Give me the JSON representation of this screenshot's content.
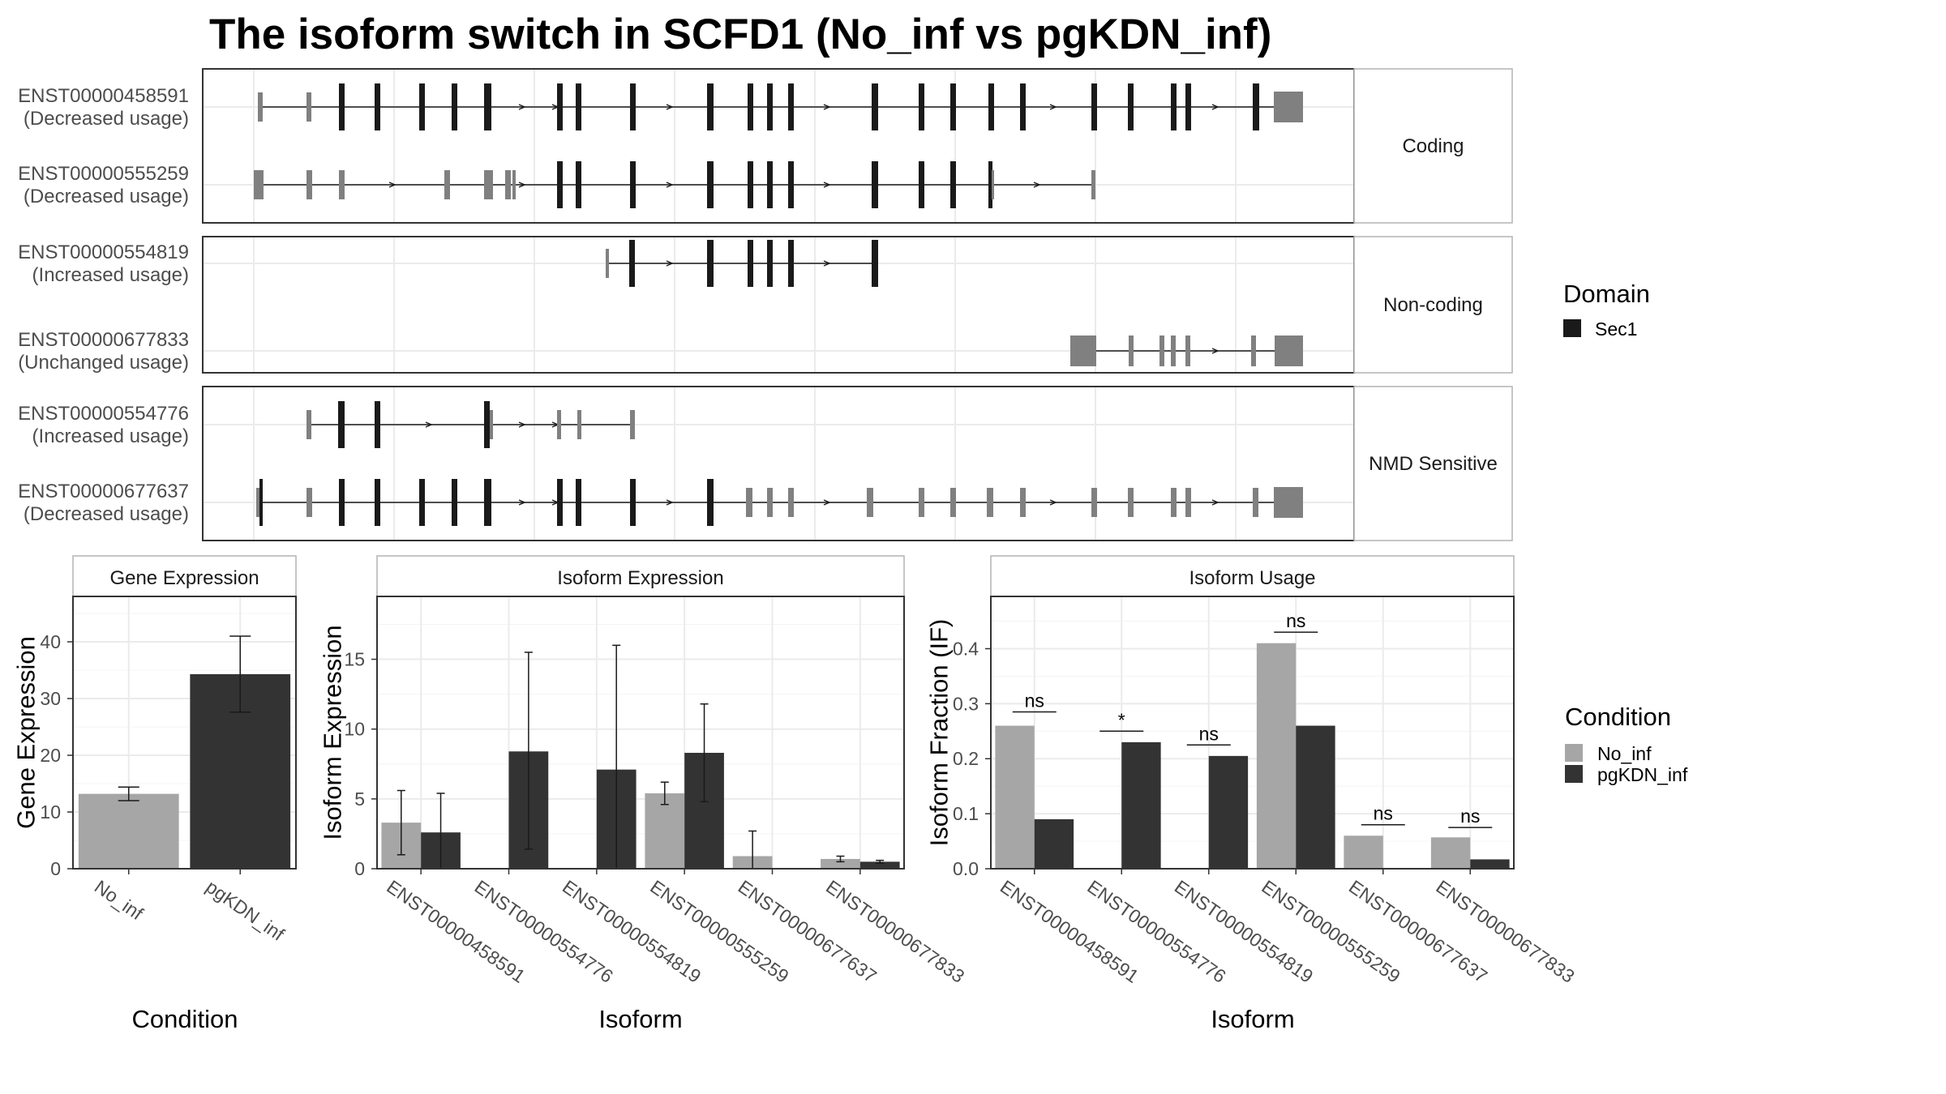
{
  "title": "The isoform switch in SCFD1 (No_inf vs pgKDN_inf)",
  "colors": {
    "domain_sec1": "#1a1a1a",
    "exon": "#808080",
    "no_inf": "#a6a6a6",
    "pgkdn_inf": "#333333",
    "grid": "#ebebeb",
    "panel_border": "#333333",
    "strip_border": "#b3b3b3"
  },
  "structure": {
    "facets": [
      {
        "label": "Coding",
        "transcripts": [
          {
            "id": "ENST00000458591",
            "status": "(Decreased usage)"
          },
          {
            "id": "ENST00000555259",
            "status": "(Decreased usage)"
          }
        ]
      },
      {
        "label": "Non-coding",
        "transcripts": [
          {
            "id": "ENST00000554819",
            "status": "(Increased usage)"
          },
          {
            "id": "ENST00000677833",
            "status": "(Unchanged usage)"
          }
        ]
      },
      {
        "label": "NMD Sensitive",
        "transcripts": [
          {
            "id": "ENST00000554776",
            "status": "(Increased usage)"
          },
          {
            "id": "ENST00000677637",
            "status": "(Decreased usage)"
          }
        ]
      }
    ],
    "legend": {
      "title": "Domain",
      "items": [
        {
          "label": "Sec1",
          "color": "#1a1a1a"
        }
      ]
    }
  },
  "chart_data": [
    {
      "type": "bar",
      "title": "Gene Expression",
      "xlabel": "Condition",
      "ylabel": "Gene Expression",
      "categories": [
        "No_inf",
        "pgKDN_inf"
      ],
      "values": [
        13.2,
        34.3
      ],
      "error_low": [
        12.0,
        27.6
      ],
      "error_high": [
        14.4,
        41.0
      ],
      "ylim": [
        0,
        48
      ],
      "yticks": [
        0,
        10,
        20,
        30,
        40
      ],
      "colors": [
        "#a6a6a6",
        "#333333"
      ],
      "grid": true
    },
    {
      "type": "bar",
      "title": "Isoform Expression",
      "xlabel": "Isoform",
      "ylabel": "Isoform Expression",
      "categories": [
        "ENST00000458591",
        "ENST00000554776",
        "ENST00000554819",
        "ENST00000555259",
        "ENST00000677637",
        "ENST00000677833"
      ],
      "series": [
        {
          "name": "No_inf",
          "values": [
            3.3,
            0.0,
            0.0,
            5.4,
            0.9,
            0.7
          ],
          "error_low": [
            1.0,
            0.0,
            0.0,
            4.6,
            0.0,
            0.5
          ],
          "error_high": [
            5.6,
            0.0,
            0.0,
            6.2,
            2.7,
            0.9
          ]
        },
        {
          "name": "pgKDN_inf",
          "values": [
            2.6,
            8.4,
            7.1,
            8.3,
            0.0,
            0.5
          ],
          "error_low": [
            0.0,
            1.4,
            0.0,
            4.8,
            0.0,
            0.4
          ],
          "error_high": [
            5.4,
            15.5,
            16.0,
            11.8,
            0.0,
            0.6
          ]
        }
      ],
      "ylim": [
        0,
        19.5
      ],
      "yticks": [
        0,
        5,
        10,
        15
      ],
      "grid": true
    },
    {
      "type": "bar",
      "title": "Isoform Usage",
      "xlabel": "Isoform",
      "ylabel": "Isoform Fraction (IF)",
      "categories": [
        "ENST00000458591",
        "ENST00000554776",
        "ENST00000554819",
        "ENST00000555259",
        "ENST00000677637",
        "ENST00000677833"
      ],
      "series": [
        {
          "name": "No_inf",
          "values": [
            0.26,
            0.0,
            0.0,
            0.41,
            0.06,
            0.057
          ]
        },
        {
          "name": "pgKDN_inf",
          "values": [
            0.09,
            0.23,
            0.205,
            0.26,
            0.0,
            0.017
          ]
        }
      ],
      "significance": [
        {
          "label": "ns",
          "level": 0.285
        },
        {
          "label": "*",
          "level": 0.25
        },
        {
          "label": "ns",
          "level": 0.225
        },
        {
          "label": "ns",
          "level": 0.43
        },
        {
          "label": "ns",
          "level": 0.08
        },
        {
          "label": "ns",
          "level": 0.075
        }
      ],
      "ylim": [
        0,
        0.495
      ],
      "yticks": [
        0.0,
        0.1,
        0.2,
        0.3,
        0.4
      ],
      "ytick_labels": [
        "0.0",
        "0.1",
        "0.2",
        "0.3",
        "0.4"
      ],
      "grid": true
    }
  ],
  "condition_legend": {
    "title": "Condition",
    "items": [
      {
        "label": "No_inf",
        "color": "#a6a6a6"
      },
      {
        "label": "pgKDN_inf",
        "color": "#333333"
      }
    ]
  }
}
